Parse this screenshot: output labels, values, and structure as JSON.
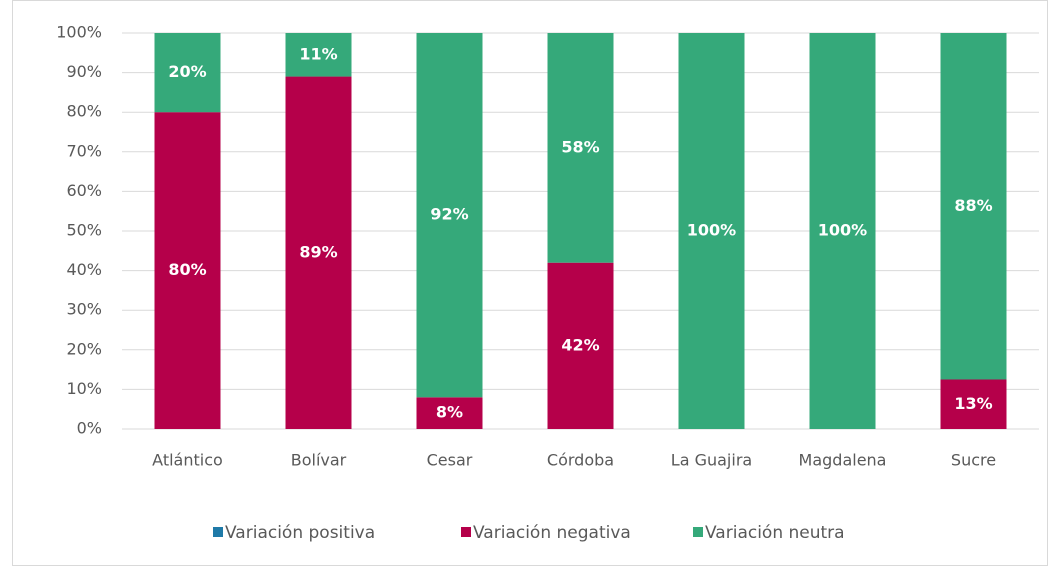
{
  "chart_data": {
    "type": "bar",
    "stacked": true,
    "categories": [
      "Atlántico",
      "Bolívar",
      "Cesar",
      "Córdoba",
      "La Guajira",
      "Magdalena",
      "Sucre"
    ],
    "series": [
      {
        "name": "Variación positiva",
        "color": "#1f7aa8",
        "values": [
          0,
          0,
          0,
          0,
          0,
          0,
          0
        ]
      },
      {
        "name": "Variación negativa",
        "color": "#b5004a",
        "values": [
          80,
          89,
          8,
          42,
          0,
          0,
          12.5
        ],
        "value_labels": [
          "80%",
          "89%",
          "8%",
          "42%",
          null,
          null,
          "13%"
        ]
      },
      {
        "name": "Variación neutra",
        "color": "#35a97a",
        "values": [
          20,
          11,
          92,
          58,
          100,
          100,
          87.5
        ],
        "value_labels": [
          "20%",
          "11%",
          "92%",
          "58%",
          "100%",
          "100%",
          "88%"
        ]
      }
    ],
    "ylim": [
      0,
      100
    ],
    "yticks": [
      {
        "value": 0,
        "label": "0%"
      },
      {
        "value": 10,
        "label": "10%"
      },
      {
        "value": 20,
        "label": "20%"
      },
      {
        "value": 30,
        "label": "30%"
      },
      {
        "value": 40,
        "label": "40%"
      },
      {
        "value": 50,
        "label": "50%"
      },
      {
        "value": 60,
        "label": "60%"
      },
      {
        "value": 70,
        "label": "70%"
      },
      {
        "value": 80,
        "label": "80%"
      },
      {
        "value": 90,
        "label": "90%"
      },
      {
        "value": 100,
        "label": "100%"
      }
    ],
    "grid": true,
    "legend": "bottom"
  }
}
